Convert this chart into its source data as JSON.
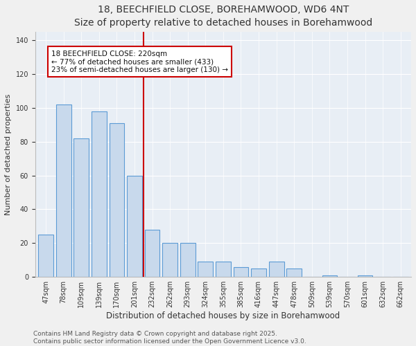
{
  "title": "18, BEECHFIELD CLOSE, BOREHAMWOOD, WD6 4NT",
  "subtitle": "Size of property relative to detached houses in Borehamwood",
  "xlabel": "Distribution of detached houses by size in Borehamwood",
  "ylabel": "Number of detached properties",
  "categories": [
    "47sqm",
    "78sqm",
    "109sqm",
    "139sqm",
    "170sqm",
    "201sqm",
    "232sqm",
    "262sqm",
    "293sqm",
    "324sqm",
    "355sqm",
    "385sqm",
    "416sqm",
    "447sqm",
    "478sqm",
    "509sqm",
    "539sqm",
    "570sqm",
    "601sqm",
    "632sqm",
    "662sqm"
  ],
  "values": [
    25,
    102,
    82,
    98,
    91,
    60,
    28,
    20,
    20,
    9,
    9,
    6,
    5,
    9,
    5,
    0,
    1,
    0,
    1,
    0,
    0
  ],
  "bar_color": "#c8d9ec",
  "bar_edge_color": "#5b9bd5",
  "vline_x_index": 5.5,
  "vline_color": "#cc0000",
  "annotation_line1": "18 BEECHFIELD CLOSE: 220sqm",
  "annotation_line2": "← 77% of detached houses are smaller (433)",
  "annotation_line3": "23% of semi-detached houses are larger (130) →",
  "annotation_box_color": "#ffffff",
  "annotation_box_edge_color": "#cc0000",
  "ylim": [
    0,
    145
  ],
  "yticks": [
    0,
    20,
    40,
    60,
    80,
    100,
    120,
    140
  ],
  "background_color": "#e8eef5",
  "fig_background_color": "#f0f0f0",
  "footer_text": "Contains HM Land Registry data © Crown copyright and database right 2025.\nContains public sector information licensed under the Open Government Licence v3.0.",
  "title_fontsize": 10,
  "subtitle_fontsize": 9,
  "xlabel_fontsize": 8.5,
  "ylabel_fontsize": 8,
  "tick_fontsize": 7,
  "annotation_fontsize": 7.5,
  "footer_fontsize": 6.5
}
